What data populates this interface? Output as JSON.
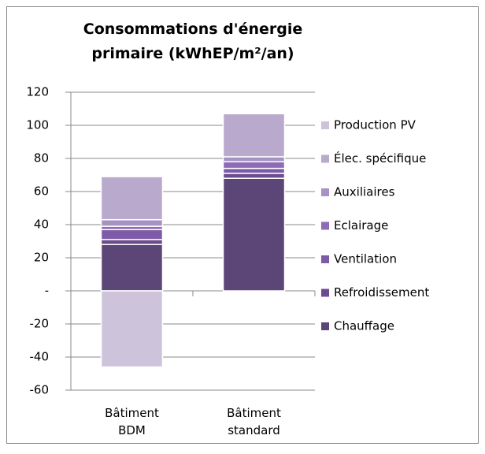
{
  "chart_data": {
    "type": "stacked_bar",
    "title": "Consommations d'énergie primaire (kWhEP/m²/an)",
    "categories": [
      "Bâtiment BDM",
      "Bâtiment standard"
    ],
    "series": [
      {
        "name": "Chauffage",
        "color": "#5c4677",
        "values": [
          28,
          68
        ]
      },
      {
        "name": "Refroidissement",
        "color": "#6c4b8e",
        "values": [
          3,
          3
        ]
      },
      {
        "name": "Ventilation",
        "color": "#7e5ba6",
        "values": [
          6,
          3
        ]
      },
      {
        "name": "Eclairage",
        "color": "#8d6bb6",
        "values": [
          2,
          4
        ]
      },
      {
        "name": "Auxiliaires",
        "color": "#a793c3",
        "values": [
          4,
          3
        ]
      },
      {
        "name": "Élec. spécifique",
        "color": "#b9a9cd",
        "values": [
          26,
          26
        ]
      },
      {
        "name": "Production PV",
        "color": "#cdc4dc",
        "values": [
          -46,
          0
        ]
      }
    ],
    "ylim": [
      -60,
      120
    ],
    "yticks": [
      -60,
      -40,
      -20,
      {
        "value": 0,
        "label": "-"
      },
      20,
      40,
      60,
      80,
      100,
      120
    ],
    "grid": true,
    "legend": "right"
  }
}
